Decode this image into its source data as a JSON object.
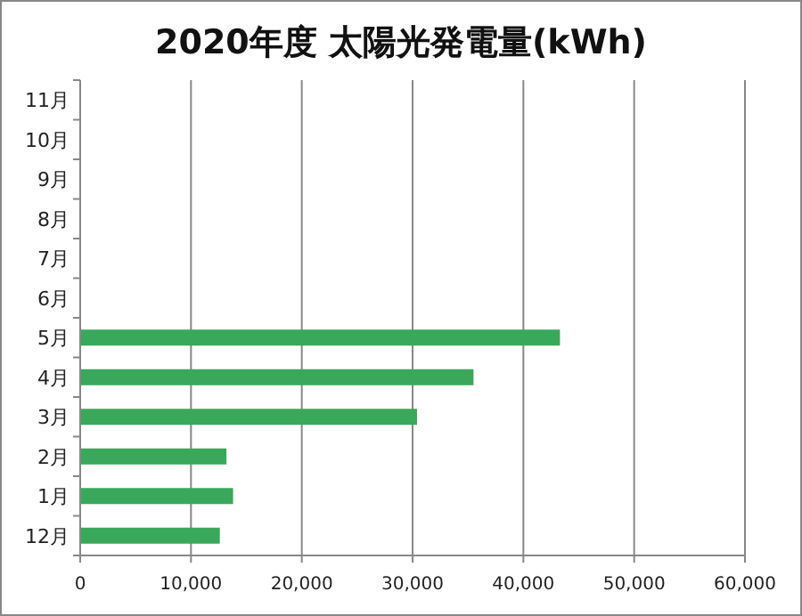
{
  "chart_data": {
    "type": "bar",
    "orientation": "horizontal",
    "title": "2020年度 太陽光発電量(kWh)",
    "categories": [
      "11月",
      "10月",
      "9月",
      "8月",
      "7月",
      "6月",
      "5月",
      "4月",
      "3月",
      "2月",
      "1月",
      "12月"
    ],
    "values": [
      null,
      null,
      null,
      null,
      null,
      null,
      43300,
      35500,
      30400,
      13200,
      13800,
      12600
    ],
    "color": "#3aa85a",
    "xlim": [
      0,
      60000
    ],
    "xticks": [
      {
        "value": 0,
        "label": "0"
      },
      {
        "value": 10000,
        "label": "10,000"
      },
      {
        "value": 20000,
        "label": "20,000"
      },
      {
        "value": 30000,
        "label": "30,000"
      },
      {
        "value": 40000,
        "label": "40,000"
      },
      {
        "value": 50000,
        "label": "50,000"
      },
      {
        "value": 60000,
        "label": "60,000"
      }
    ],
    "grid": "x"
  }
}
